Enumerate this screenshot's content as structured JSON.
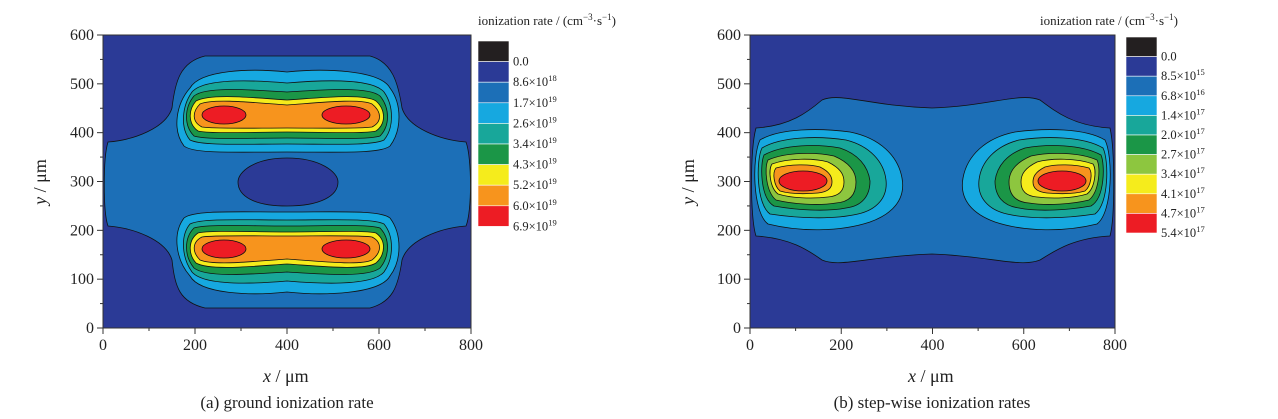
{
  "chart_data": [
    {
      "type": "heatmap",
      "subtype": "contour",
      "caption": "(a) ground ionization rate",
      "xlabel_var": "x",
      "xlabel_unit": "μm",
      "ylabel_var": "y",
      "ylabel_unit": "μm",
      "xlim": [
        0,
        800
      ],
      "ylim": [
        0,
        600
      ],
      "xticks": [
        "0",
        "200",
        "400",
        "600",
        "800"
      ],
      "yticks": [
        "0",
        "100",
        "200",
        "300",
        "400",
        "500",
        "600"
      ],
      "colorbar_title": "ionization rate / (cm",
      "colorbar_title_exp1": "−3",
      "colorbar_title_mid": "·s",
      "colorbar_title_exp2": "−1",
      "colorbar_title_end": ")",
      "levels": [
        {
          "mant": "0.0",
          "exp": "",
          "color": "#231f20"
        },
        {
          "mant": "8.6×10",
          "exp": "18",
          "color": "#2b3a96"
        },
        {
          "mant": "1.7×10",
          "exp": "19",
          "color": "#1c6fb7"
        },
        {
          "mant": "2.6×10",
          "exp": "19",
          "color": "#16a8e0"
        },
        {
          "mant": "3.4×10",
          "exp": "19",
          "color": "#18a79a"
        },
        {
          "mant": "4.3×10",
          "exp": "19",
          "color": "#1b9647"
        },
        {
          "mant": "5.2×10",
          "exp": "19",
          "color": "#f5ec1c"
        },
        {
          "mant": "6.0×10",
          "exp": "19",
          "color": "#f7941d"
        },
        {
          "mant": "6.9×10",
          "exp": "19",
          "color": "#ed1c24"
        }
      ]
    },
    {
      "type": "heatmap",
      "subtype": "contour",
      "caption": "(b) step-wise ionization rates",
      "xlabel_var": "x",
      "xlabel_unit": "μm",
      "ylabel_var": "y",
      "ylabel_unit": "μm",
      "xlim": [
        0,
        800
      ],
      "ylim": [
        0,
        600
      ],
      "xticks": [
        "0",
        "200",
        "400",
        "600",
        "800"
      ],
      "yticks": [
        "0",
        "100",
        "200",
        "300",
        "400",
        "500",
        "600"
      ],
      "colorbar_title": "ionization rate / (cm",
      "colorbar_title_exp1": "−3",
      "colorbar_title_mid": "·s",
      "colorbar_title_exp2": "−1",
      "colorbar_title_end": ")",
      "levels": [
        {
          "mant": "0.0",
          "exp": "",
          "color": "#231f20"
        },
        {
          "mant": "8.5×10",
          "exp": "15",
          "color": "#2b3a96"
        },
        {
          "mant": "6.8×10",
          "exp": "16",
          "color": "#1c6fb7"
        },
        {
          "mant": "1.4×10",
          "exp": "17",
          "color": "#16a8e0"
        },
        {
          "mant": "2.0×10",
          "exp": "17",
          "color": "#18a79a"
        },
        {
          "mant": "2.7×10",
          "exp": "17",
          "color": "#1b9647"
        },
        {
          "mant": "3.4×10",
          "exp": "17",
          "color": "#8dc63f"
        },
        {
          "mant": "4.1×10",
          "exp": "17",
          "color": "#f5ec1c"
        },
        {
          "mant": "4.7×10",
          "exp": "17",
          "color": "#f7941d"
        },
        {
          "mant": "5.4×10",
          "exp": "17",
          "color": "#ed1c24"
        }
      ]
    }
  ]
}
